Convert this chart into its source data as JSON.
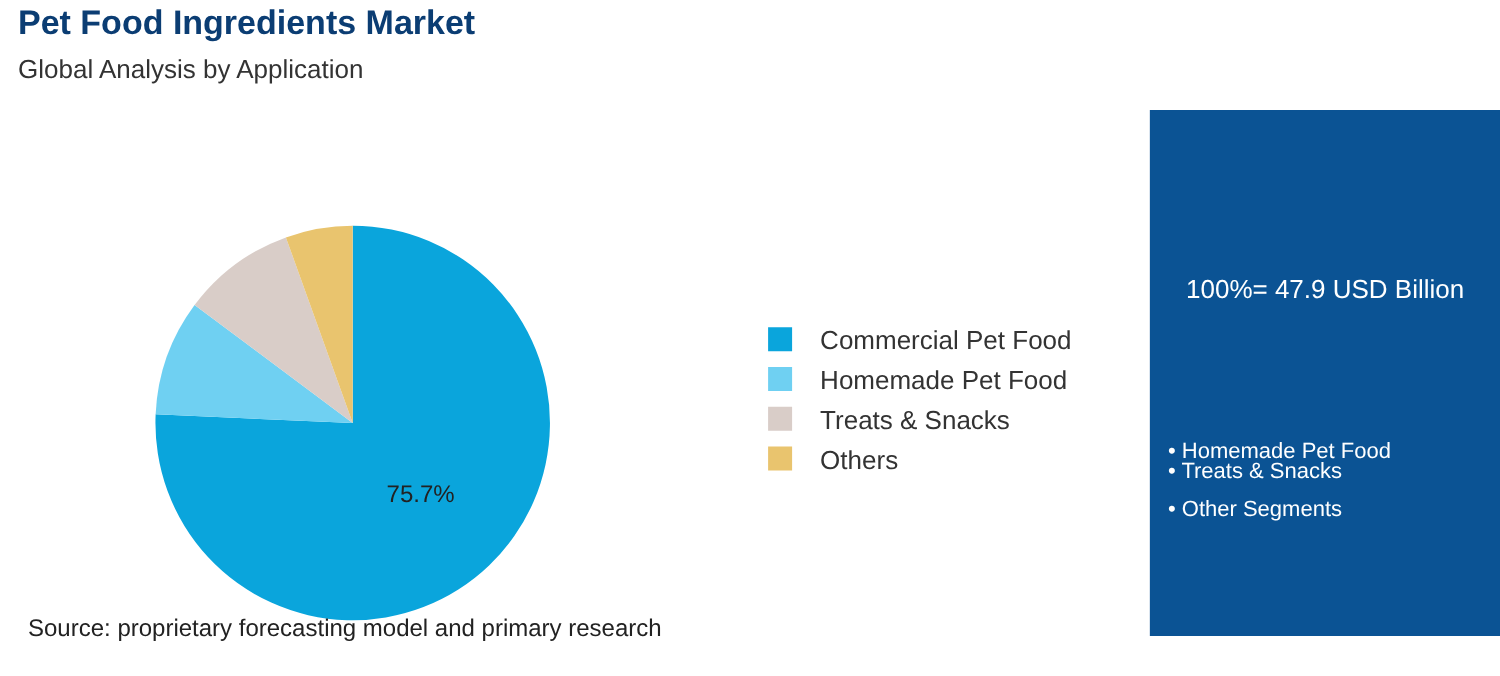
{
  "chart_data": {
    "type": "pie",
    "title": "Pet Food Ingredients Market",
    "subtitle": "Global Analysis by Application",
    "categories": [
      "Commercial Pet Food",
      "Homemade Pet Food",
      "Treats & Snacks",
      "Others"
    ],
    "values": [
      75.7,
      9.5,
      9.3,
      5.5
    ],
    "value_labels": [
      "75.7%",
      null,
      null,
      null
    ],
    "colors": [
      "#0aa5dc",
      "#6fd0f2",
      "#d9cdc8",
      "#e9c46e"
    ],
    "legend": "right",
    "annotations": [
      "100%= 47.9 USD Billion",
      "• Homemade Pet Food",
      "• Treats & Snacks",
      "• Other Segments",
      "Source: proprietary forecasting model and primary research"
    ]
  }
}
